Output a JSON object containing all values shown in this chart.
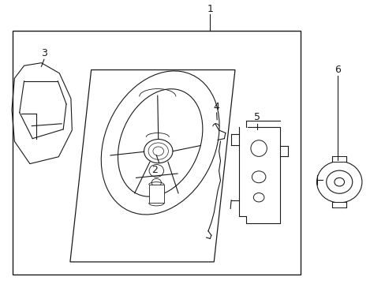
{
  "bg_color": "#ffffff",
  "line_color": "#1a1a1a",
  "label_color": "#1a1a1a",
  "fig_width": 4.89,
  "fig_height": 3.6,
  "dpi": 100
}
